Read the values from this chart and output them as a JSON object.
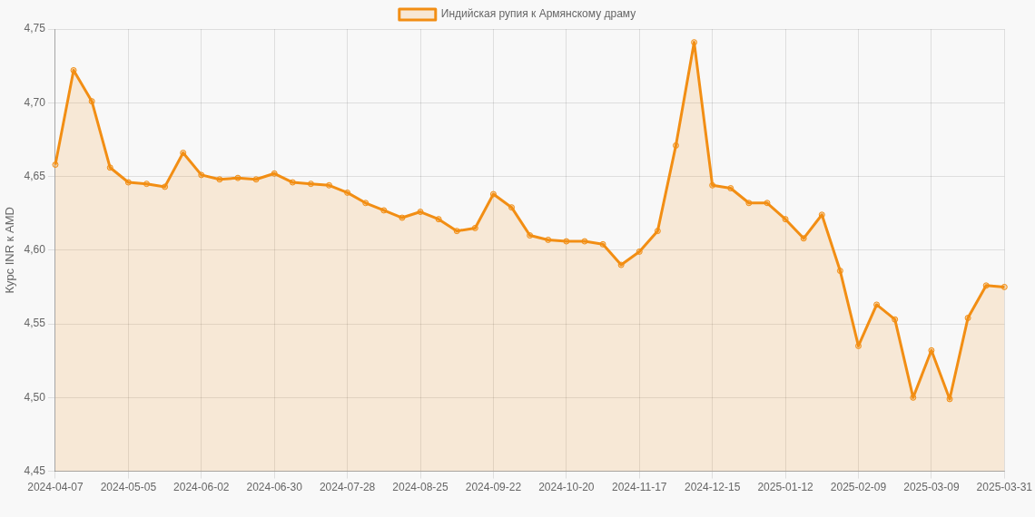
{
  "chart_data": {
    "type": "area",
    "ylabel": "Курс INR к AMD",
    "categories": [
      "2024-04-07",
      null,
      null,
      null,
      "2024-05-05",
      null,
      null,
      null,
      "2024-06-02",
      null,
      null,
      null,
      "2024-06-30",
      null,
      null,
      null,
      "2024-07-28",
      null,
      null,
      null,
      "2024-08-25",
      null,
      null,
      null,
      "2024-09-22",
      null,
      null,
      null,
      "2024-10-20",
      null,
      null,
      null,
      "2024-11-17",
      null,
      null,
      null,
      "2024-12-15",
      null,
      null,
      null,
      "2025-01-12",
      null,
      null,
      null,
      "2025-02-09",
      null,
      null,
      null,
      "2025-03-09",
      null,
      null,
      null,
      "2025-03-31"
    ],
    "series": [
      {
        "name": "Индийская рупия к Армянскому драму",
        "color": "#f28e14",
        "values": [
          4.658,
          4.722,
          4.701,
          4.656,
          4.646,
          4.645,
          4.643,
          4.666,
          4.651,
          4.648,
          4.649,
          4.648,
          4.652,
          4.646,
          4.645,
          4.644,
          4.639,
          4.632,
          4.627,
          4.622,
          4.626,
          4.621,
          4.613,
          4.615,
          4.638,
          4.629,
          4.61,
          4.607,
          4.606,
          4.606,
          4.604,
          4.59,
          4.599,
          4.613,
          4.671,
          4.741,
          4.644,
          4.642,
          4.632,
          4.632,
          4.621,
          4.608,
          4.624,
          4.586,
          4.535,
          4.563,
          4.553,
          4.5,
          4.532,
          4.499,
          4.554,
          4.576,
          4.575
        ]
      }
    ],
    "ylim": [
      4.45,
      4.75
    ],
    "yticks": [
      {
        "value": 4.45,
        "label": "4,45"
      },
      {
        "value": 4.5,
        "label": "4,50"
      },
      {
        "value": 4.55,
        "label": "4,55"
      },
      {
        "value": 4.6,
        "label": "4,60"
      },
      {
        "value": 4.65,
        "label": "4,65"
      },
      {
        "value": 4.7,
        "label": "4,70"
      },
      {
        "value": 4.75,
        "label": "4,75"
      }
    ],
    "grid": true,
    "legend": "top",
    "marker": "circle"
  }
}
